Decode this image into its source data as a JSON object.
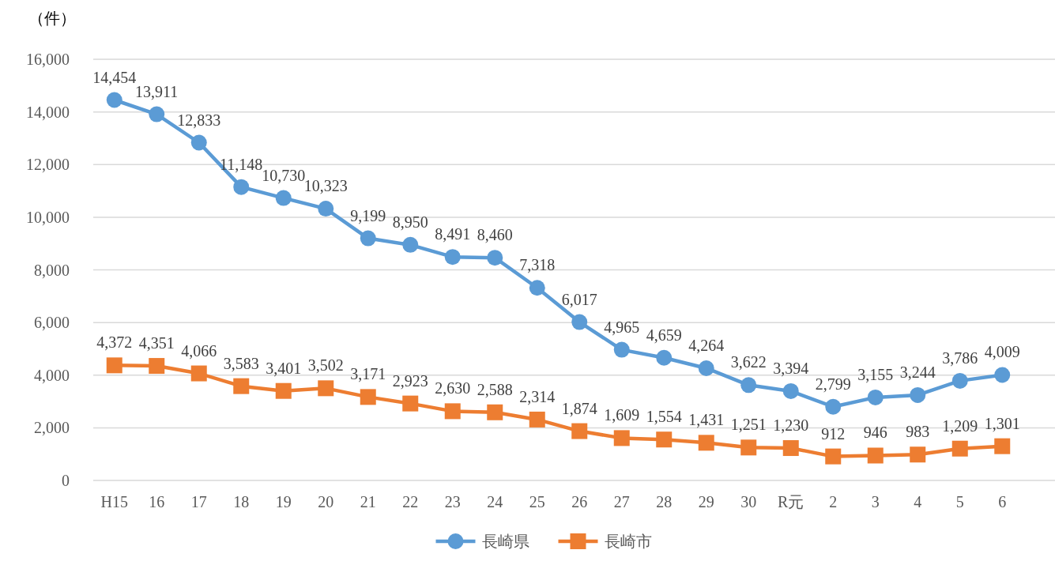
{
  "chart_data": {
    "type": "line",
    "ylabel": "（件）",
    "categories": [
      "H15",
      "16",
      "17",
      "18",
      "19",
      "20",
      "21",
      "22",
      "23",
      "24",
      "25",
      "26",
      "27",
      "28",
      "29",
      "30",
      "R元",
      "2",
      "3",
      "4",
      "5",
      "6"
    ],
    "series": [
      {
        "name": "長崎県",
        "color": "#5b9bd5",
        "marker": "circle",
        "values": [
          14454,
          13911,
          12833,
          11148,
          10730,
          10323,
          9199,
          8950,
          8491,
          8460,
          7318,
          6017,
          4965,
          4659,
          4264,
          3622,
          3394,
          2799,
          3155,
          3244,
          3786,
          4009
        ],
        "value_labels": [
          "14,454",
          "13,911",
          "12,833",
          "11,148",
          "10,730",
          "10,323",
          "9,199",
          "8,950",
          "8,491",
          "8,460",
          "7,318",
          "6,017",
          "4,965",
          "4,659",
          "4,264",
          "3,622",
          "3,394",
          "2,799",
          "3,155",
          "3,244",
          "3,786",
          "4,009"
        ]
      },
      {
        "name": "長崎市",
        "color": "#ed7d31",
        "marker": "square",
        "values": [
          4372,
          4351,
          4066,
          3583,
          3401,
          3502,
          3171,
          2923,
          2630,
          2588,
          2314,
          1874,
          1609,
          1554,
          1431,
          1251,
          1230,
          912,
          946,
          983,
          1209,
          1301
        ],
        "value_labels": [
          "4,372",
          "4,351",
          "4,066",
          "3,583",
          "3,401",
          "3,502",
          "3,171",
          "2,923",
          "2,630",
          "2,588",
          "2,314",
          "1,874",
          "1,609",
          "1,554",
          "1,431",
          "1,251",
          "1,230",
          "912",
          "946",
          "983",
          "1,209",
          "1,301"
        ]
      }
    ],
    "ylim": [
      0,
      16000
    ],
    "yticks": [
      0,
      {
        "value": 2000,
        "label": "2,000"
      },
      {
        "value": 4000,
        "label": "4,000"
      },
      {
        "value": 6000,
        "label": "6,000"
      },
      {
        "value": 8000,
        "label": "8,000"
      },
      {
        "value": 10000,
        "label": "10,000"
      },
      {
        "value": 12000,
        "label": "12,000"
      },
      {
        "value": 14000,
        "label": "14,000"
      },
      {
        "value": 16000,
        "label": "16,000"
      }
    ],
    "grid": "y",
    "legend": "bottom",
    "line_style": "solid"
  }
}
